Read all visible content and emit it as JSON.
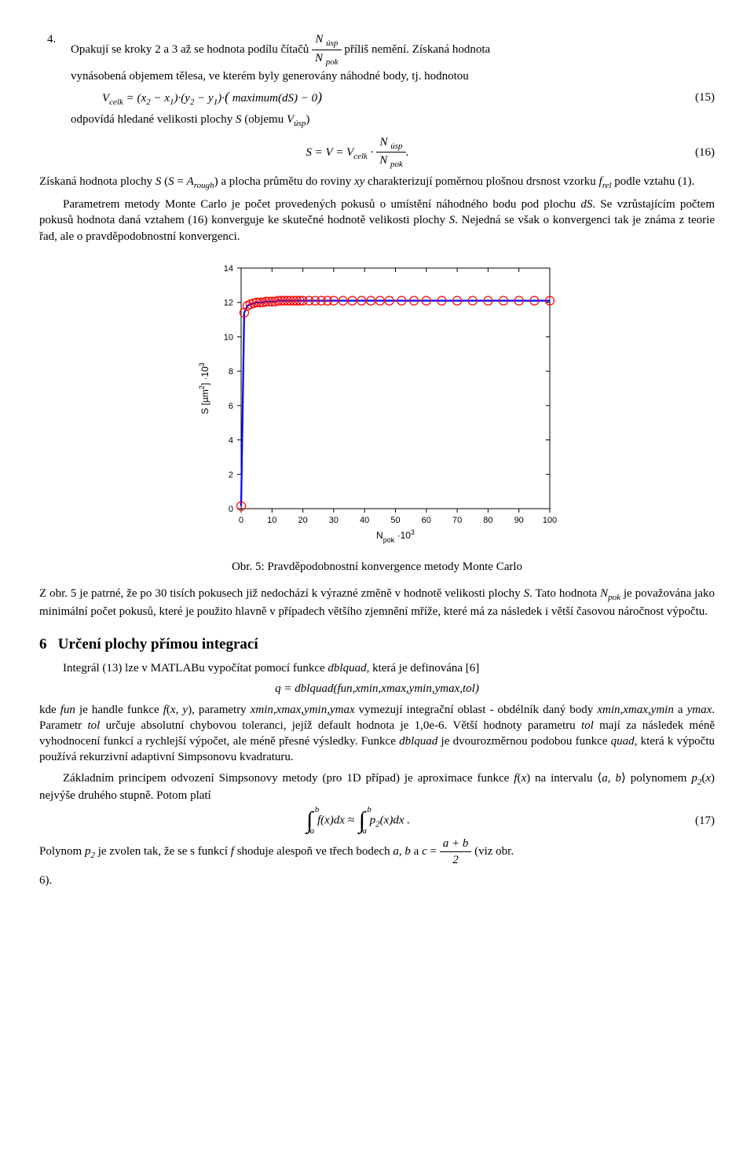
{
  "item4": {
    "num": "4.",
    "text_a": "Opakují se kroky 2 a 3 až se hodnota podílu čítačů ",
    "frac_top": "N úsp",
    "frac_bot": "N pok",
    "text_b": " příliš nemění. Získaná hodnota",
    "line2": "vynásobená objemem tělesa, ve kterém byly generovány náhodné body, tj. hodnotou"
  },
  "eq15": {
    "text": "V_{celk} = (x₂ − x₁)·(y₂ − y₁)·( maximum(dS) − 0)",
    "num": "(15)"
  },
  "line_after15": "odpovídá hledané velikosti plochy S (objemu V_{úsp})",
  "eq16": {
    "lhs": "S = V = V_{celk} ·",
    "frac_top": "N úsp",
    "frac_bot": "N pok",
    "dot": ".",
    "num": "(16)"
  },
  "para_after16": "Získaná hodnota plochy S (S = A_{rough}) a plocha průmětu do roviny xy charakterizují poměrnou plošnou drsnost vzorku f_{rel} podle vztahu (1).",
  "para_mc": "Parametrem metody Monte Carlo je počet provedených pokusů o umístění náhodného bodu pod plochu dS. Se vzrůstajícím počtem pokusů hodnota daná vztahem (16) konverguje ke skutečné hodnotě velikosti plochy S. Nejedná se však o konvergenci tak je známa z teorie řad, ale o pravděpodobnostní konvergenci.",
  "chart": {
    "type": "line-with-markers",
    "background_color": "#ffffff",
    "axis_color": "#000000",
    "tick_color": "#000000",
    "box": true,
    "xlim": [
      0,
      100
    ],
    "ylim": [
      0,
      14
    ],
    "xticks": [
      0,
      10,
      20,
      30,
      40,
      50,
      60,
      70,
      80,
      90,
      100
    ],
    "yticks": [
      0,
      2,
      4,
      6,
      8,
      10,
      12,
      14
    ],
    "xlabel": "N_{pok} ·10^{3}",
    "ylabel": "S [µm²] ·10^{3}",
    "label_fontsize": 12,
    "tick_fontsize": 11,
    "line_color": "#0000ff",
    "line_width": 2.2,
    "marker_edge_color": "#ff0000",
    "marker_face_color": "none",
    "marker_shape": "circle",
    "marker_size": 5.5,
    "marker_line_width": 1.2,
    "x": [
      0,
      1,
      2,
      3,
      4,
      5,
      6,
      7,
      8,
      9,
      10,
      11,
      12,
      13,
      14,
      15,
      16,
      17,
      18,
      19,
      20,
      22,
      24,
      26,
      28,
      30,
      33,
      36,
      39,
      42,
      45,
      48,
      52,
      56,
      60,
      65,
      70,
      75,
      80,
      85,
      90,
      95,
      100
    ],
    "y": [
      0.15,
      11.4,
      11.8,
      11.9,
      11.95,
      12.0,
      12.0,
      12.0,
      12.05,
      12.05,
      12.05,
      12.05,
      12.1,
      12.1,
      12.1,
      12.1,
      12.1,
      12.1,
      12.1,
      12.1,
      12.1,
      12.1,
      12.1,
      12.1,
      12.1,
      12.1,
      12.1,
      12.1,
      12.1,
      12.1,
      12.1,
      12.1,
      12.1,
      12.1,
      12.1,
      12.1,
      12.1,
      12.1,
      12.1,
      12.1,
      12.1,
      12.1,
      12.1
    ]
  },
  "caption": "Obr. 5: Pravděpodobnostní konvergence metody Monte Carlo",
  "para_zobr": "Z obr. 5 je patrné, že po 30 tisích pokusech již nedochází k výrazné změně v hodnotě velikosti plochy S. Tato hodnota N_{pok} je považována jako minimální počet pokusů, které je použito hlavně v případech většího zjemnění mříže, které má za následek i větší časovou náročnost výpočtu.",
  "section6": {
    "num": "6",
    "title": "Určení plochy přímou integrací"
  },
  "para_int1": "Integrál (13) lze v MATLABu vypočítat pomocí funkce dblquad, která je definována [6]",
  "eq_dblquad": "q = dblquad(fun,xmin,xmax,ymin,ymax,tol)",
  "para_int2_a": "kde fun je handle funkce ",
  "para_int2_fxy": "f(x, y)",
  "para_int2_b": ", parametry xmin,xmax,ymin,ymax vymezují integrační oblast - obdélník daný body xmin,xmax,ymin a ymax. Parametr tol určuje absolutní chybovou toleranci, jejíž default hodnota je 1,0e-6. Větší hodnoty parametru tol mají za následek méně vyhodnocení funkcí a rychlejší výpočet, ale méně přesné výsledky. Funkce dblquad je dvourozměrnou podobou funkce quad, která k výpočtu používá rekurzivní adaptivní Simpsonovu kvadraturu.",
  "para_simpson_a": "Základním principem odvození Simpsonovy metody (pro 1D případ) je aproximace funkce ",
  "para_simpson_b": " na intervalu ",
  "para_simpson_c": " polynomem ",
  "para_simpson_d": " nejvýše druhého stupně. Potom platí",
  "fx": "f(x)",
  "ab": "⟨a, b⟩",
  "p2x": "p₂(x)",
  "eq17": {
    "num": "(17)"
  },
  "para_poly_a": "Polynom p₂ je zvolen tak, že se s funkcí f shoduje alespoň ve třech bodech a, b a ",
  "para_poly_c": "c =",
  "frac_ab_top": "a + b",
  "frac_ab_bot": "2",
  "para_poly_b": " (viz obr.",
  "line_6": "6)."
}
